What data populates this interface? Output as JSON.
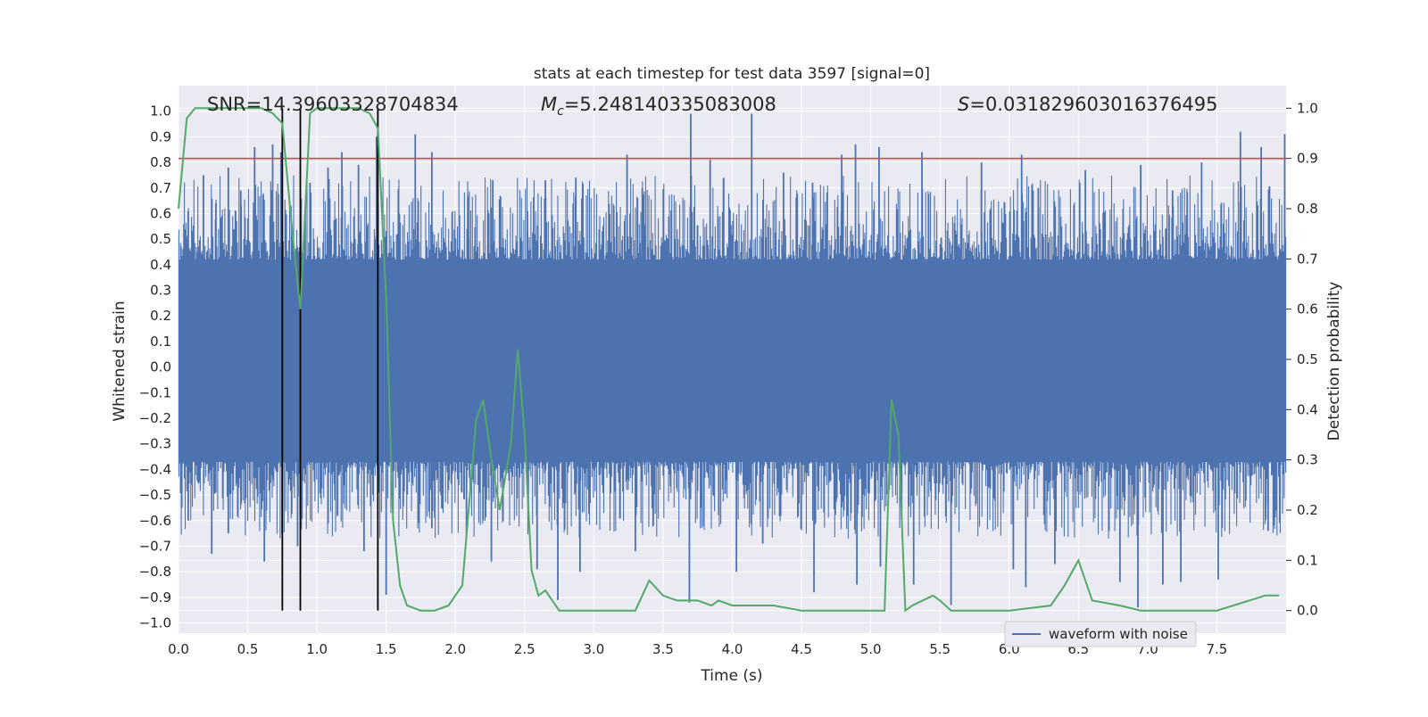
{
  "chart_data": {
    "type": "line",
    "title": "stats at each timestep for test data 3597 [signal=0]",
    "xlabel": "Time (s)",
    "ylabel": "Whitened strain",
    "ylabel_right": "Detection probability",
    "xlim": [
      0.0,
      8.0
    ],
    "ylim": [
      -1.04,
      1.1
    ],
    "ylim_right": [
      -0.045,
      1.045
    ],
    "xticks": [
      "0.0",
      "0.5",
      "1.0",
      "1.5",
      "2.0",
      "2.5",
      "3.0",
      "3.5",
      "4.0",
      "4.5",
      "5.0",
      "5.5",
      "6.0",
      "6.5",
      "7.0",
      "7.5"
    ],
    "yticks": [
      "1.0",
      "0.9",
      "0.8",
      "0.7",
      "0.6",
      "0.5",
      "0.4",
      "0.3",
      "0.2",
      "0.1",
      "0.0",
      "-0.1",
      "-0.2",
      "-0.3",
      "-0.4",
      "-0.5",
      "-0.6",
      "-0.7",
      "-0.8",
      "-0.9",
      "-1.0"
    ],
    "yticks_right": [
      "1.0",
      "0.9",
      "0.8",
      "0.7",
      "0.6",
      "0.5",
      "0.4",
      "0.3",
      "0.2",
      "0.1",
      "0.0"
    ],
    "annotations": {
      "snr": "SNR=14.39603328704834",
      "mc_symbol": "M",
      "mc_sub": "c",
      "mc_value": "=5.248140335083008",
      "s_symbol": "S",
      "s_value": "=0.031829603016376495"
    },
    "legend": {
      "label": "waveform with noise",
      "placement": "lower right"
    },
    "threshold_right": 0.9,
    "vertical_lines_x": [
      0.75,
      0.88,
      1.44
    ],
    "colors": {
      "waveform": "#4c72b0",
      "probability": "#55a868",
      "threshold": "#c44e52",
      "vlines": "#000000",
      "background": "#eaeaf2",
      "grid": "#ffffff"
    },
    "series": [
      {
        "name": "waveform with noise",
        "axis": "left",
        "style": "dense noise band",
        "core_range": [
          -0.37,
          0.42
        ],
        "peak_range": [
          -0.93,
          1.0
        ],
        "spike_samples": [
          [
            0.07,
            0.61
          ],
          [
            0.18,
            0.75
          ],
          [
            0.27,
            0.64
          ],
          [
            0.36,
            0.78
          ],
          [
            0.45,
            0.69
          ],
          [
            0.55,
            0.86
          ],
          [
            0.68,
            0.87
          ],
          [
            0.74,
            0.84
          ],
          [
            0.95,
            0.72
          ],
          [
            1.08,
            0.78
          ],
          [
            1.18,
            0.84
          ],
          [
            1.3,
            0.79
          ],
          [
            1.43,
            0.9
          ],
          [
            1.71,
            0.91
          ],
          [
            1.83,
            0.84
          ],
          [
            2.09,
            0.67
          ],
          [
            2.27,
            0.73
          ],
          [
            2.52,
            0.61
          ],
          [
            2.65,
            0.73
          ],
          [
            2.87,
            0.74
          ],
          [
            3.24,
            0.83
          ],
          [
            3.35,
            0.7
          ],
          [
            3.7,
            0.99
          ],
          [
            3.84,
            0.81
          ],
          [
            4.14,
            0.99
          ],
          [
            4.37,
            0.76
          ],
          [
            4.58,
            0.72
          ],
          [
            4.79,
            0.83
          ],
          [
            4.89,
            0.87
          ],
          [
            5.06,
            0.86
          ],
          [
            5.37,
            0.84
          ],
          [
            5.8,
            0.8
          ],
          [
            6.09,
            0.83
          ],
          [
            6.21,
            0.7
          ],
          [
            6.55,
            0.77
          ],
          [
            6.95,
            0.79
          ],
          [
            7.18,
            0.69
          ],
          [
            7.39,
            0.8
          ],
          [
            7.67,
            0.92
          ],
          [
            7.82,
            0.86
          ],
          [
            7.99,
            0.91
          ],
          [
            0.07,
            -0.6
          ],
          [
            0.24,
            -0.73
          ],
          [
            0.36,
            -0.65
          ],
          [
            0.62,
            -0.76
          ],
          [
            0.86,
            -0.7
          ],
          [
            1.13,
            -0.52
          ],
          [
            1.34,
            -0.72
          ],
          [
            1.5,
            -0.89
          ],
          [
            1.83,
            -0.63
          ],
          [
            2.08,
            -0.67
          ],
          [
            2.26,
            -0.76
          ],
          [
            2.59,
            -0.79
          ],
          [
            2.74,
            -0.91
          ],
          [
            2.9,
            -0.8
          ],
          [
            3.3,
            -0.72
          ],
          [
            3.69,
            -0.92
          ],
          [
            4.03,
            -0.8
          ],
          [
            4.22,
            -0.69
          ],
          [
            4.59,
            -0.88
          ],
          [
            4.9,
            -0.85
          ],
          [
            5.07,
            -0.78
          ],
          [
            5.31,
            -0.85
          ],
          [
            5.58,
            -0.93
          ],
          [
            6.03,
            -0.79
          ],
          [
            6.12,
            -0.86
          ],
          [
            6.33,
            -0.77
          ],
          [
            6.8,
            -0.84
          ],
          [
            6.93,
            -0.94
          ],
          [
            7.11,
            -0.85
          ],
          [
            7.24,
            -0.84
          ],
          [
            7.51,
            -0.83
          ],
          [
            7.87,
            -0.64
          ]
        ]
      },
      {
        "name": "",
        "axis": "right",
        "x": [
          0.0,
          0.06,
          0.12,
          0.3,
          0.5,
          0.6,
          0.68,
          0.75,
          0.82,
          0.88,
          0.95,
          1.0,
          1.1,
          1.3,
          1.38,
          1.44,
          1.5,
          1.55,
          1.6,
          1.65,
          1.75,
          1.85,
          1.95,
          2.05,
          2.15,
          2.2,
          2.25,
          2.32,
          2.4,
          2.45,
          2.5,
          2.55,
          2.6,
          2.65,
          2.7,
          2.75,
          2.85,
          3.0,
          3.1,
          3.3,
          3.4,
          3.5,
          3.6,
          3.7,
          3.75,
          3.85,
          3.9,
          4.0,
          4.2,
          4.3,
          4.5,
          5.0,
          5.1,
          5.15,
          5.2,
          5.25,
          5.3,
          5.45,
          5.5,
          5.58,
          5.7,
          6.0,
          6.3,
          6.4,
          6.5,
          6.6,
          6.8,
          6.95,
          7.0,
          7.1,
          7.5,
          7.85,
          7.95
        ],
        "values": [
          0.8,
          0.98,
          1.0,
          1.0,
          1.0,
          1.0,
          0.99,
          0.97,
          0.76,
          0.6,
          0.99,
          1.0,
          1.0,
          1.0,
          0.99,
          0.96,
          0.62,
          0.18,
          0.05,
          0.01,
          0.0,
          0.0,
          0.01,
          0.05,
          0.38,
          0.42,
          0.32,
          0.2,
          0.33,
          0.52,
          0.35,
          0.08,
          0.03,
          0.04,
          0.02,
          0.0,
          0.0,
          0.0,
          0.0,
          0.0,
          0.06,
          0.03,
          0.02,
          0.02,
          0.02,
          0.01,
          0.02,
          0.01,
          0.01,
          0.01,
          0.0,
          0.0,
          0.0,
          0.42,
          0.35,
          0.0,
          0.01,
          0.03,
          0.02,
          0.0,
          0.0,
          0.0,
          0.01,
          0.05,
          0.1,
          0.02,
          0.01,
          0.0,
          0.0,
          0.0,
          0.0,
          0.03,
          0.03
        ]
      }
    ]
  }
}
